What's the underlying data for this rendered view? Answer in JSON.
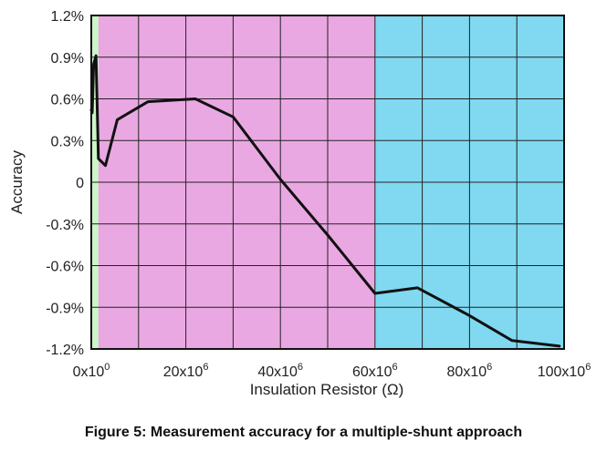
{
  "caption": "Figure 5: Measurement accuracy for a multiple-shunt approach",
  "chart_data": {
    "type": "line",
    "title": "",
    "xlabel": "Insulation Resistor (Ω)",
    "ylabel": "Accuracy",
    "xlim": [
      0,
      100000000
    ],
    "ylim": [
      -1.2,
      1.2
    ],
    "x_ticks": [
      {
        "value": 0,
        "label": "0x10",
        "sup": "0"
      },
      {
        "value": 20000000,
        "label": "20x10",
        "sup": "6"
      },
      {
        "value": 40000000,
        "label": "40x10",
        "sup": "6"
      },
      {
        "value": 60000000,
        "label": "60x10",
        "sup": "6"
      },
      {
        "value": 80000000,
        "label": "80x10",
        "sup": "6"
      },
      {
        "value": 100000000,
        "label": "100x10",
        "sup": "6"
      }
    ],
    "y_ticks": [
      {
        "value": 1.2,
        "label": "1.2%"
      },
      {
        "value": 0.9,
        "label": "0.9%"
      },
      {
        "value": 0.6,
        "label": "0.6%"
      },
      {
        "value": 0.3,
        "label": "0.3%"
      },
      {
        "value": 0,
        "label": "0"
      },
      {
        "value": -0.3,
        "label": "-0.3%"
      },
      {
        "value": -0.6,
        "label": "-0.6%"
      },
      {
        "value": -0.9,
        "label": "-0.9%"
      },
      {
        "value": -1.2,
        "label": "-1.2%"
      }
    ],
    "grid": true,
    "x_grid_step": 10000000,
    "regions": [
      {
        "from": 0,
        "to": 1500000,
        "color": "#ccf5c8"
      },
      {
        "from": 1500000,
        "to": 60000000,
        "color": "#eaa8e2"
      },
      {
        "from": 60000000,
        "to": 100000000,
        "color": "#80d9f0"
      }
    ],
    "series": [
      {
        "name": "",
        "color": "#111111",
        "x": [
          0,
          200000,
          500000,
          1000000,
          1500000,
          3000000,
          5500000,
          12000000,
          22000000,
          30000000,
          40000000,
          50000000,
          60000000,
          69000000,
          80000000,
          89000000,
          99000000
        ],
        "y": [
          0.52,
          0.5,
          0.85,
          0.91,
          0.17,
          0.12,
          0.45,
          0.58,
          0.6,
          0.47,
          0.02,
          -0.38,
          -0.8,
          -0.76,
          -0.96,
          -1.14,
          -1.18
        ]
      }
    ]
  }
}
